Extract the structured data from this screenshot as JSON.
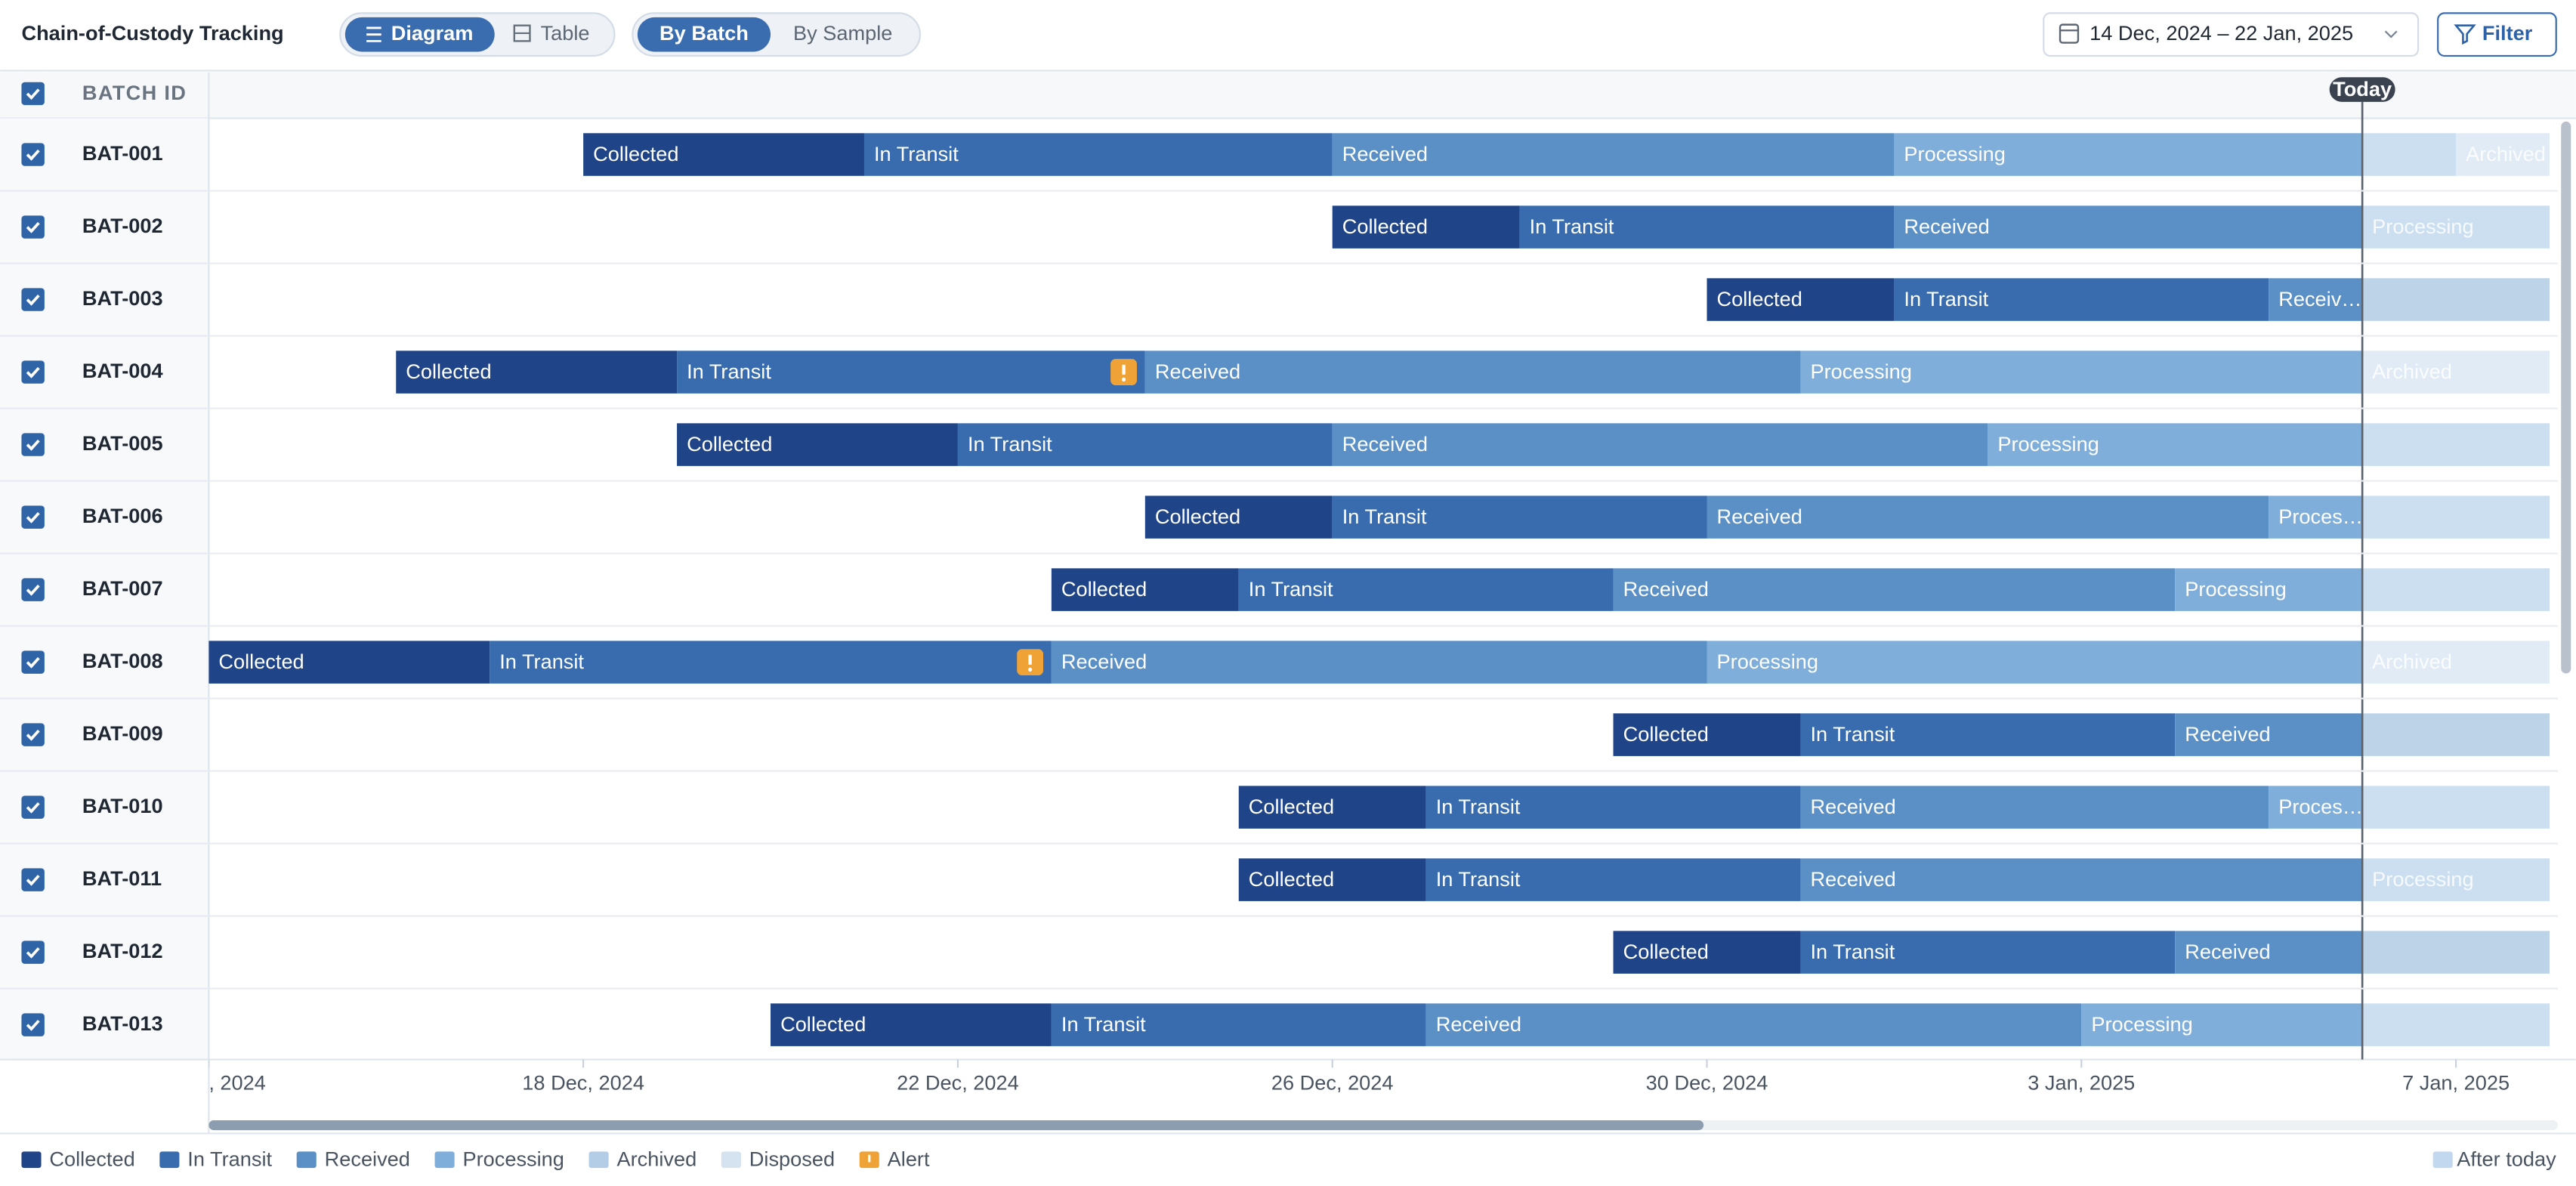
{
  "header": {
    "title": "Chain-of-Custody Tracking",
    "view_tabs": [
      "Diagram",
      "Table"
    ],
    "group_tabs": [
      "By Batch",
      "By Sample"
    ],
    "date_range": "14 Dec, 2024 – 22 Jan, 2025",
    "filter": "Filter"
  },
  "table": {
    "column": "BATCH ID",
    "today_label": "Today",
    "today": "2025-01-06"
  },
  "timeline": {
    "xlim": [
      "2024-12-14",
      "2025-01-08"
    ],
    "xticks": [
      {
        "value": "2024-12-14",
        "label": ", 2024"
      },
      {
        "value": "2024-12-18",
        "label": "18 Dec, 2024"
      },
      {
        "value": "2024-12-22",
        "label": "22 Dec, 2024"
      },
      {
        "value": "2024-12-26",
        "label": "26 Dec, 2024"
      },
      {
        "value": "2024-12-30",
        "label": "30 Dec, 2024"
      },
      {
        "value": "2025-01-03",
        "label": "3 Jan, 2025"
      },
      {
        "value": "2025-01-07",
        "label": "7 Jan, 2025"
      }
    ],
    "rows": [
      {
        "id": "BAT-001",
        "segments": [
          {
            "stage": "Collected",
            "start": "2024-12-18",
            "end": "2024-12-21"
          },
          {
            "stage": "In Transit",
            "start": "2024-12-21",
            "end": "2024-12-26"
          },
          {
            "stage": "Received",
            "start": "2024-12-26",
            "end": "2025-01-01"
          },
          {
            "stage": "Processing",
            "start": "2025-01-01",
            "end": "2025-01-07"
          },
          {
            "stage": "Archived",
            "start": "2025-01-07",
            "end": "2025-01-08"
          }
        ]
      },
      {
        "id": "BAT-002",
        "segments": [
          {
            "stage": "Collected",
            "start": "2024-12-26",
            "end": "2024-12-28"
          },
          {
            "stage": "In Transit",
            "start": "2024-12-28",
            "end": "2025-01-01"
          },
          {
            "stage": "Received",
            "start": "2025-01-01",
            "end": "2025-01-06"
          },
          {
            "stage": "Processing",
            "start": "2025-01-06",
            "end": "2025-01-08"
          }
        ]
      },
      {
        "id": "BAT-003",
        "segments": [
          {
            "stage": "Collected",
            "start": "2024-12-30",
            "end": "2025-01-01"
          },
          {
            "stage": "In Transit",
            "start": "2025-01-01",
            "end": "2025-01-05"
          },
          {
            "stage": "Received",
            "label": "Receiv…",
            "start": "2025-01-05",
            "end": "2025-01-08"
          }
        ]
      },
      {
        "id": "BAT-004",
        "segments": [
          {
            "stage": "Collected",
            "start": "2024-12-16",
            "end": "2024-12-19"
          },
          {
            "stage": "In Transit",
            "start": "2024-12-19",
            "end": "2024-12-24",
            "alert": true
          },
          {
            "stage": "Received",
            "start": "2024-12-24",
            "end": "2024-12-31"
          },
          {
            "stage": "Processing",
            "start": "2024-12-31",
            "end": "2025-01-06"
          },
          {
            "stage": "Archived",
            "start": "2025-01-06",
            "end": "2025-01-08"
          }
        ]
      },
      {
        "id": "BAT-005",
        "segments": [
          {
            "stage": "Collected",
            "start": "2024-12-19",
            "end": "2024-12-22"
          },
          {
            "stage": "In Transit",
            "start": "2024-12-22",
            "end": "2024-12-26"
          },
          {
            "stage": "Received",
            "start": "2024-12-26",
            "end": "2025-01-02"
          },
          {
            "stage": "Processing",
            "start": "2025-01-02",
            "end": "2025-01-08"
          }
        ]
      },
      {
        "id": "BAT-006",
        "segments": [
          {
            "stage": "Collected",
            "start": "2024-12-24",
            "end": "2024-12-26"
          },
          {
            "stage": "In Transit",
            "start": "2024-12-26",
            "end": "2024-12-30"
          },
          {
            "stage": "Received",
            "start": "2024-12-30",
            "end": "2025-01-05"
          },
          {
            "stage": "Processing",
            "label": "Proces…",
            "start": "2025-01-05",
            "end": "2025-01-08"
          }
        ]
      },
      {
        "id": "BAT-007",
        "segments": [
          {
            "stage": "Collected",
            "start": "2024-12-23",
            "end": "2024-12-25"
          },
          {
            "stage": "In Transit",
            "start": "2024-12-25",
            "end": "2024-12-29"
          },
          {
            "stage": "Received",
            "start": "2024-12-29",
            "end": "2025-01-04"
          },
          {
            "stage": "Processing",
            "start": "2025-01-04",
            "end": "2025-01-08"
          }
        ]
      },
      {
        "id": "BAT-008",
        "segments": [
          {
            "stage": "Collected",
            "start": "2024-12-14",
            "end": "2024-12-17"
          },
          {
            "stage": "In Transit",
            "start": "2024-12-17",
            "end": "2024-12-23",
            "alert": true
          },
          {
            "stage": "Received",
            "start": "2024-12-23",
            "end": "2024-12-30"
          },
          {
            "stage": "Processing",
            "start": "2024-12-30",
            "end": "2025-01-06"
          },
          {
            "stage": "Archived",
            "start": "2025-01-06",
            "end": "2025-01-08"
          }
        ]
      },
      {
        "id": "BAT-009",
        "segments": [
          {
            "stage": "Collected",
            "start": "2024-12-29",
            "end": "2024-12-31"
          },
          {
            "stage": "In Transit",
            "start": "2024-12-31",
            "end": "2025-01-04"
          },
          {
            "stage": "Received",
            "start": "2025-01-04",
            "end": "2025-01-08"
          }
        ]
      },
      {
        "id": "BAT-010",
        "segments": [
          {
            "stage": "Collected",
            "start": "2024-12-25",
            "end": "2024-12-27"
          },
          {
            "stage": "In Transit",
            "start": "2024-12-27",
            "end": "2024-12-31"
          },
          {
            "stage": "Received",
            "start": "2024-12-31",
            "end": "2025-01-05"
          },
          {
            "stage": "Processing",
            "label": "Proces…",
            "start": "2025-01-05",
            "end": "2025-01-08"
          }
        ]
      },
      {
        "id": "BAT-011",
        "segments": [
          {
            "stage": "Collected",
            "start": "2024-12-25",
            "end": "2024-12-27"
          },
          {
            "stage": "In Transit",
            "start": "2024-12-27",
            "end": "2024-12-31"
          },
          {
            "stage": "Received",
            "start": "2024-12-31",
            "end": "2025-01-06"
          },
          {
            "stage": "Processing",
            "start": "2025-01-06",
            "end": "2025-01-08"
          }
        ]
      },
      {
        "id": "BAT-012",
        "segments": [
          {
            "stage": "Collected",
            "start": "2024-12-29",
            "end": "2024-12-31"
          },
          {
            "stage": "In Transit",
            "start": "2024-12-31",
            "end": "2025-01-04"
          },
          {
            "stage": "Received",
            "start": "2025-01-04",
            "end": "2025-01-08"
          }
        ]
      },
      {
        "id": "BAT-013",
        "segments": [
          {
            "stage": "Collected",
            "start": "2024-12-20",
            "end": "2024-12-23"
          },
          {
            "stage": "In Transit",
            "start": "2024-12-23",
            "end": "2024-12-27"
          },
          {
            "stage": "Received",
            "start": "2024-12-27",
            "end": "2025-01-03"
          },
          {
            "stage": "Processing",
            "start": "2025-01-03",
            "end": "2025-01-08"
          }
        ]
      }
    ]
  },
  "legend": {
    "items": [
      {
        "name": "Collected",
        "color": "#1f4487"
      },
      {
        "name": "In Transit",
        "color": "#386cae"
      },
      {
        "name": "Received",
        "color": "#5a90c6"
      },
      {
        "name": "Processing",
        "color": "#7eaed9"
      },
      {
        "name": "Archived",
        "color": "#b3cde7"
      },
      {
        "name": "Disposed",
        "color": "#d5e3f1"
      },
      {
        "name": "Alert",
        "color": "#efa235"
      }
    ],
    "after_today": {
      "name": "After today",
      "color": "#c2d8ee"
    }
  }
}
